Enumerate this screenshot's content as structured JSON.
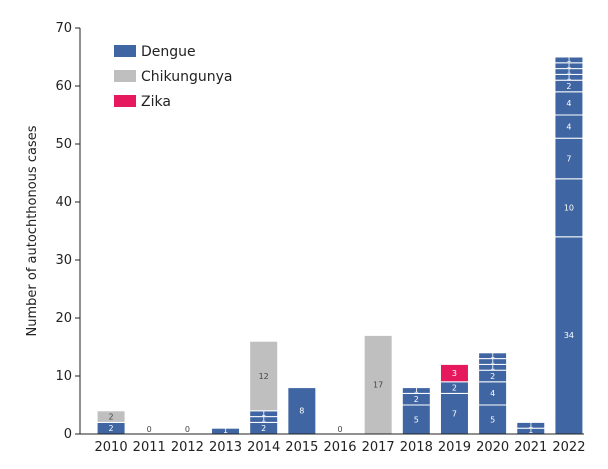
{
  "chart_data": {
    "type": "bar",
    "stacked": true,
    "ylabel": "Number of autochthonous cases",
    "ylim": [
      0,
      70
    ],
    "yticks": [
      "0",
      "10",
      "20",
      "30",
      "40",
      "50",
      "60",
      "70"
    ],
    "categories": [
      "2010",
      "2011",
      "2012",
      "2013",
      "2014",
      "2015",
      "2016",
      "2017",
      "2018",
      "2019",
      "2020",
      "2021",
      "2022"
    ],
    "colors": {
      "Dengue": "#3f65a2",
      "Chikungunya": "#bfbfbf",
      "Zika": "#e6195f"
    },
    "legend": {
      "position": "top-left",
      "entries": [
        {
          "name": "Dengue",
          "color": "#3f65a2"
        },
        {
          "name": "Chikungunya",
          "color": "#bfbfbf"
        },
        {
          "name": "Zika",
          "color": "#e6195f"
        }
      ]
    },
    "zero_labels": [
      "0",
      "0",
      "0"
    ],
    "stacks": [
      [
        {
          "series": "Dengue",
          "value": 2,
          "label": "2"
        },
        {
          "series": "Chikungunya",
          "value": 2,
          "label": "2"
        }
      ],
      [],
      [],
      [
        {
          "series": "Dengue",
          "value": 1,
          "label": "1"
        }
      ],
      [
        {
          "series": "Dengue",
          "value": 2,
          "label": "2"
        },
        {
          "series": "Dengue",
          "value": 1,
          "label": "1"
        },
        {
          "series": "Dengue",
          "value": 1,
          "label": "1"
        },
        {
          "series": "Chikungunya",
          "value": 12,
          "label": "12"
        }
      ],
      [
        {
          "series": "Dengue",
          "value": 8,
          "label": "8"
        }
      ],
      [],
      [
        {
          "series": "Chikungunya",
          "value": 17,
          "label": "17"
        }
      ],
      [
        {
          "series": "Dengue",
          "value": 5,
          "label": "5"
        },
        {
          "series": "Dengue",
          "value": 2,
          "label": "2"
        },
        {
          "series": "Dengue",
          "value": 1,
          "label": "1"
        }
      ],
      [
        {
          "series": "Dengue",
          "value": 7,
          "label": "7"
        },
        {
          "series": "Dengue",
          "value": 2,
          "label": "2"
        },
        {
          "series": "Zika",
          "value": 3,
          "label": "3"
        }
      ],
      [
        {
          "series": "Dengue",
          "value": 5,
          "label": "5"
        },
        {
          "series": "Dengue",
          "value": 4,
          "label": "4"
        },
        {
          "series": "Dengue",
          "value": 2,
          "label": "2"
        },
        {
          "series": "Dengue",
          "value": 1,
          "label": "1"
        },
        {
          "series": "Dengue",
          "value": 1,
          "label": "1"
        },
        {
          "series": "Dengue",
          "value": 1,
          "label": "1"
        }
      ],
      [
        {
          "series": "Dengue",
          "value": 1,
          "label": "1"
        },
        {
          "series": "Dengue",
          "value": 1,
          "label": "1"
        }
      ],
      [
        {
          "series": "Dengue",
          "value": 34,
          "label": "34"
        },
        {
          "series": "Dengue",
          "value": 10,
          "label": "10"
        },
        {
          "series": "Dengue",
          "value": 7,
          "label": "7"
        },
        {
          "series": "Dengue",
          "value": 4,
          "label": "4"
        },
        {
          "series": "Dengue",
          "value": 4,
          "label": "4"
        },
        {
          "series": "Dengue",
          "value": 2,
          "label": "2"
        },
        {
          "series": "Dengue",
          "value": 1,
          "label": "1"
        },
        {
          "series": "Dengue",
          "value": 1,
          "label": "1"
        },
        {
          "series": "Dengue",
          "value": 1,
          "label": "1"
        },
        {
          "series": "Dengue",
          "value": 1,
          "label": "1"
        }
      ]
    ]
  }
}
